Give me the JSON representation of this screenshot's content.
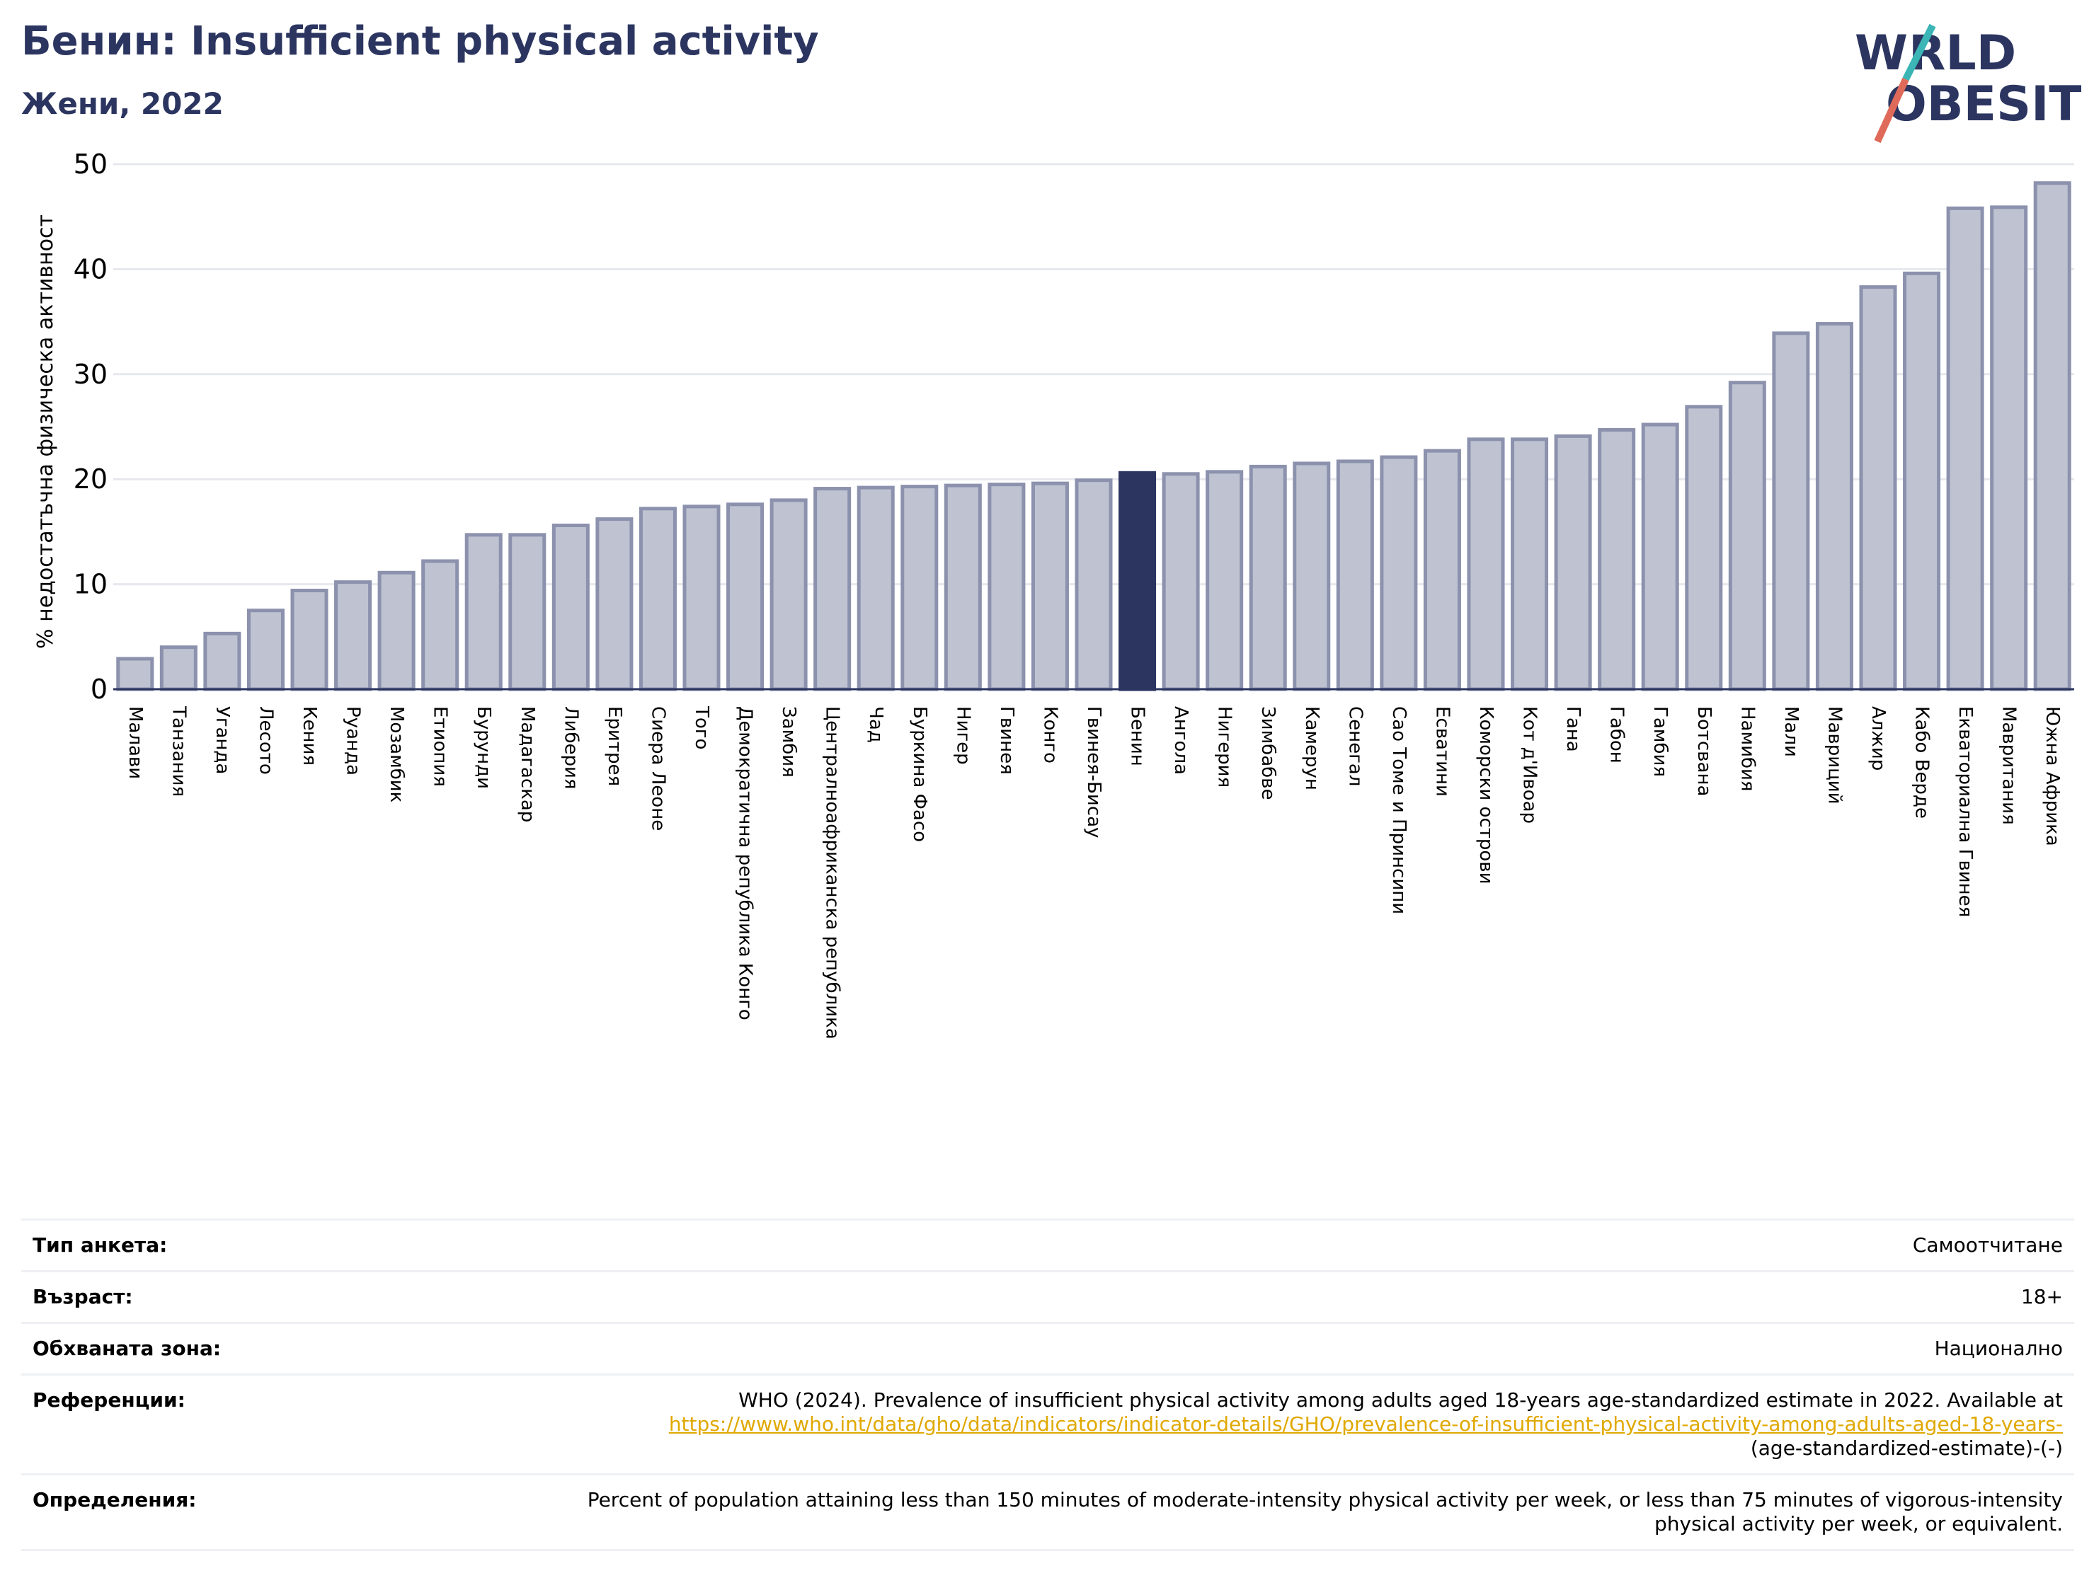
{
  "header": {
    "title": "Бенин: Insufficient physical activity",
    "subtitle": "Жени, 2022"
  },
  "logo": {
    "text": "WORLD OBESITY",
    "colors": {
      "text": "#2b3560",
      "slash_top": "#3bb5b5",
      "slash_bottom": "#e06a5a"
    }
  },
  "chart_data": {
    "type": "bar",
    "ylabel": "% недостатъчна физическа активност",
    "xlabel": "",
    "ylim": [
      0,
      50
    ],
    "yticks": [
      0,
      10,
      20,
      30,
      40,
      50
    ],
    "grid": true,
    "highlight": "Бенин",
    "colors": {
      "bar": "#bfc3d1",
      "bar_edge": "#8c92ad",
      "highlight": "#2b3560",
      "grid": "#e6e8ee",
      "axis": "#2b3560"
    },
    "categories": [
      "Малави",
      "Танзания",
      "Уганда",
      "Лесото",
      "Кения",
      "Руанда",
      "Мозамбик",
      "Етиопия",
      "Бурунди",
      "Мадагаскар",
      "Либерия",
      "Еритрея",
      "Сиера Леоне",
      "Того",
      "Демократична република Конго",
      "Замбия",
      "Централноафриканска република",
      "Чад",
      "Буркина Фасо",
      "Нигер",
      "Гвинея",
      "Конго",
      "Гвинея-Бисау",
      "Бенин",
      "Ангола",
      "Нигерия",
      "Зимбабве",
      "Камерун",
      "Сенегал",
      "Сао Томе и Принсипи",
      "Есватини",
      "Коморски острови",
      "Кот д'Ивоар",
      "Гана",
      "Габон",
      "Гамбия",
      "Ботсвана",
      "Намибия",
      "Мали",
      "Мавриций",
      "Алжир",
      "Кабо Верде",
      "Екваториална Гвинея",
      "Мавритания",
      "Южна Африка"
    ],
    "values": [
      2.9,
      4.0,
      5.3,
      7.5,
      9.4,
      10.2,
      11.1,
      12.2,
      14.7,
      14.7,
      15.6,
      16.2,
      17.2,
      17.4,
      17.6,
      18.0,
      19.1,
      19.2,
      19.3,
      19.4,
      19.5,
      19.6,
      19.9,
      20.6,
      20.5,
      20.7,
      21.2,
      21.5,
      21.7,
      22.1,
      22.7,
      23.8,
      23.8,
      24.1,
      24.7,
      25.2,
      26.9,
      29.2,
      33.9,
      34.8,
      38.3,
      39.6,
      45.8,
      45.9,
      48.2
    ]
  },
  "info": {
    "rows": [
      {
        "label": "Тип анкета:",
        "value": "Самоотчитане"
      },
      {
        "label": "Възраст:",
        "value": "18+"
      },
      {
        "label": "Обхваната зона:",
        "value": "Национално"
      }
    ],
    "references": {
      "label": "Референции:",
      "text": "WHO (2024). Prevalence of insufficient physical activity among adults aged 18-years age-standardized estimate in 2022. Available at",
      "link": "https://www.who.int/data/gho/data/indicators/indicator-details/GHO/prevalence-of-insufficient-physical-activity-among-adults-aged-18-years-",
      "tail": "(age-standardized-estimate)-(-)"
    },
    "definitions": {
      "label": "Определения:",
      "text": "Percent of population attaining less than 150 minutes of moderate-intensity physical activity per week, or less than 75 minutes of vigorous-intensity physical activity per week, or equivalent."
    }
  }
}
